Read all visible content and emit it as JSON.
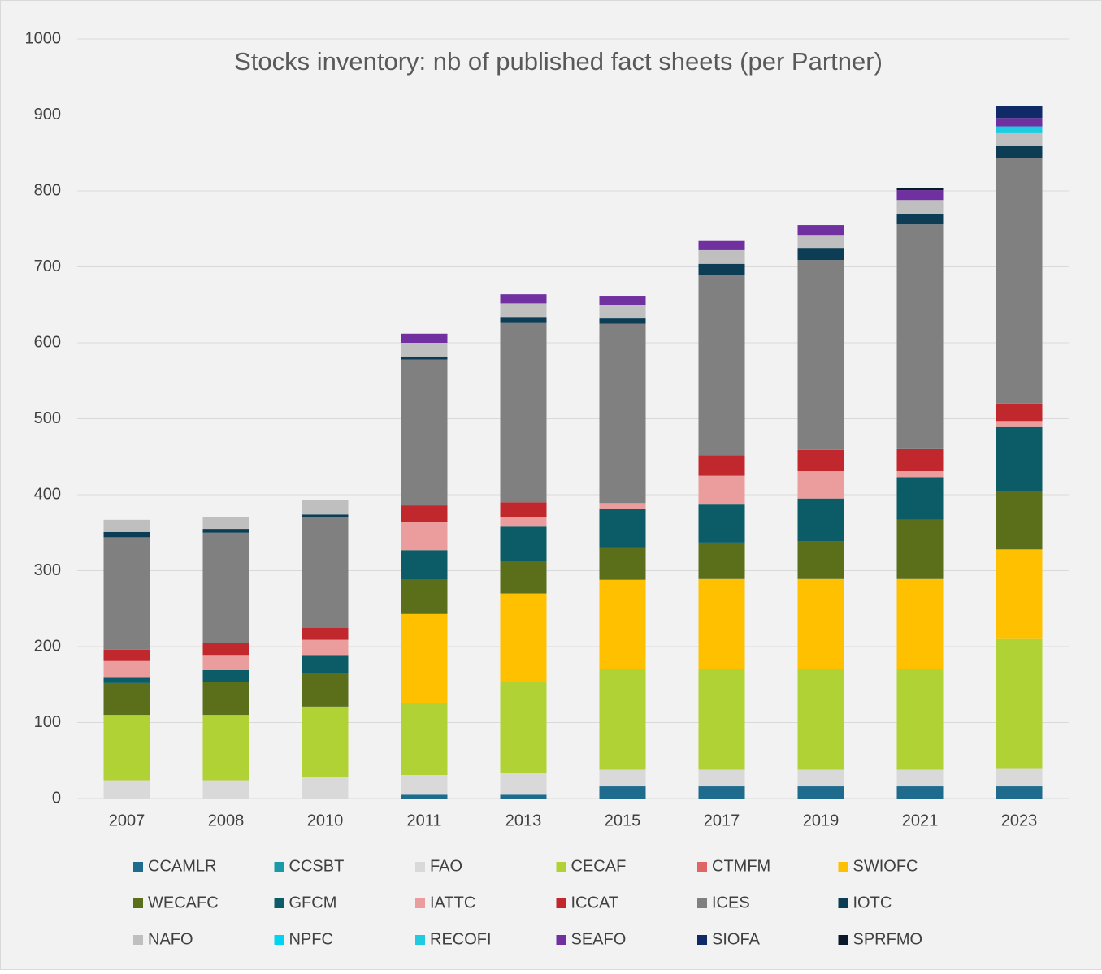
{
  "chart_data": {
    "type": "stacked_bar",
    "title": "Stocks inventory: nb of published fact sheets (per Partner)",
    "categories": [
      "2007",
      "2008",
      "2010",
      "2011",
      "2013",
      "2015",
      "2017",
      "2019",
      "2021",
      "2023"
    ],
    "ylim": [
      0,
      1000
    ],
    "yticks": [
      0,
      100,
      200,
      300,
      400,
      500,
      600,
      700,
      800,
      900,
      1000
    ],
    "grid": true,
    "legend": "bottom",
    "series": [
      {
        "name": "CCAMLR",
        "color": "#1f6b8e",
        "values": [
          0,
          0,
          0,
          5,
          5,
          16,
          16,
          16,
          16,
          16
        ]
      },
      {
        "name": "CCSBT",
        "color": "#1a9aa8",
        "values": [
          0,
          0,
          0,
          0,
          0,
          0,
          0,
          0,
          0,
          0
        ]
      },
      {
        "name": "FAO",
        "color": "#d9d9d9",
        "values": [
          24,
          24,
          28,
          26,
          29,
          22,
          22,
          22,
          22,
          23
        ]
      },
      {
        "name": "CECAF",
        "color": "#b0d234",
        "values": [
          86,
          86,
          93,
          95,
          119,
          133,
          133,
          133,
          133,
          172
        ]
      },
      {
        "name": "CTMFM",
        "color": "#e06666",
        "values": [
          0,
          0,
          0,
          0,
          0,
          0,
          0,
          0,
          0,
          0
        ]
      },
      {
        "name": "SWIOFC",
        "color": "#ffc000",
        "values": [
          0,
          0,
          0,
          117,
          117,
          117,
          118,
          118,
          118,
          117
        ]
      },
      {
        "name": "WECAFC",
        "color": "#5b6e1a",
        "values": [
          42,
          44,
          44,
          45,
          43,
          43,
          48,
          50,
          78,
          77
        ]
      },
      {
        "name": "GFCM",
        "color": "#0b5c66",
        "values": [
          7,
          15,
          24,
          39,
          45,
          50,
          50,
          56,
          56,
          84
        ]
      },
      {
        "name": "IATTC",
        "color": "#eb9c9c",
        "values": [
          22,
          20,
          20,
          37,
          12,
          8,
          38,
          36,
          8,
          8
        ]
      },
      {
        "name": "ICCAT",
        "color": "#c0282d",
        "values": [
          15,
          16,
          16,
          22,
          20,
          0,
          27,
          28,
          29,
          23
        ]
      },
      {
        "name": "ICES",
        "color": "#808080",
        "values": [
          148,
          145,
          145,
          192,
          237,
          236,
          237,
          250,
          296,
          323
        ]
      },
      {
        "name": "IOTC",
        "color": "#0d3c55",
        "values": [
          7,
          5,
          4,
          4,
          7,
          7,
          15,
          16,
          14,
          16
        ]
      },
      {
        "name": "NAFO",
        "color": "#bfbfbf",
        "values": [
          16,
          16,
          19,
          18,
          18,
          18,
          18,
          17,
          18,
          17
        ]
      },
      {
        "name": "NPFC",
        "color": "#00d4f0",
        "values": [
          0,
          0,
          0,
          0,
          0,
          0,
          0,
          0,
          0,
          0
        ]
      },
      {
        "name": "RECOFI",
        "color": "#1ecbe1",
        "values": [
          0,
          0,
          0,
          0,
          0,
          0,
          0,
          0,
          0,
          9
        ]
      },
      {
        "name": "SEAFO",
        "color": "#7030a0",
        "values": [
          0,
          0,
          0,
          12,
          12,
          12,
          12,
          13,
          13,
          11
        ]
      },
      {
        "name": "SIOFA",
        "color": "#0f2a66",
        "values": [
          0,
          0,
          0,
          0,
          0,
          0,
          0,
          0,
          0,
          16
        ]
      },
      {
        "name": "SPRFMO",
        "color": "#0a1a2a",
        "values": [
          0,
          0,
          0,
          0,
          0,
          0,
          0,
          0,
          3,
          0
        ]
      }
    ]
  }
}
